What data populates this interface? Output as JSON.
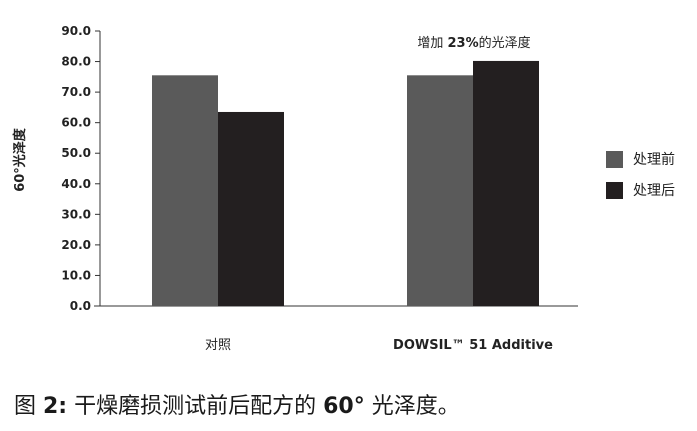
{
  "chart_data": {
    "type": "bar",
    "ylabel": "60°光泽度",
    "ylim": [
      0,
      90
    ],
    "yticks": [
      "0.0",
      "10.0",
      "20.0",
      "30.0",
      "40.0",
      "50.0",
      "60.0",
      "70.0",
      "80.0",
      "90.0"
    ],
    "categories": [
      "对照",
      "DOWSIL™ 51 Additive"
    ],
    "series": [
      {
        "name": "处理前",
        "color": "#5a5a5a",
        "values": [
          75.5,
          75.5
        ]
      },
      {
        "name": "处理后",
        "color": "#231f20",
        "values": [
          63.5,
          80.2
        ]
      }
    ],
    "annotation": {
      "prefix": "增加 ",
      "value": "23%",
      "suffix": "的光泽度"
    },
    "grid": false,
    "legend_position": "right"
  },
  "caption": {
    "prefix": "图 ",
    "number": "2:",
    "middle": " 干燥磨损测试前后配方的 ",
    "value": "60°",
    "suffix": " 光泽度。"
  }
}
